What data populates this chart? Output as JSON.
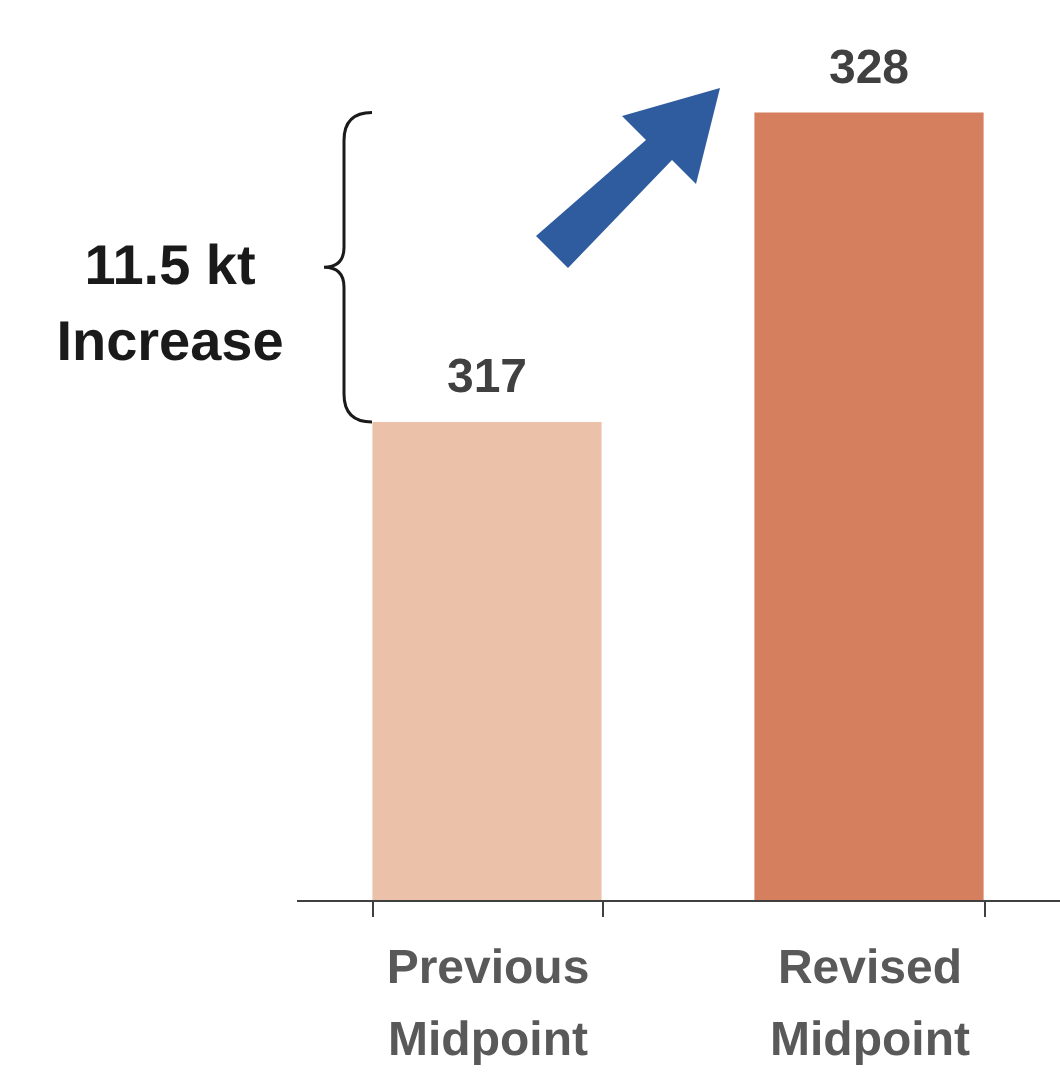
{
  "chart_data": {
    "type": "bar",
    "categories": [
      "Previous Midpoint",
      "Revised Midpoint"
    ],
    "values": [
      317,
      328
    ],
    "colors": [
      "#ebc1aa",
      "#d67f5e"
    ],
    "ylim": [
      300,
      332
    ],
    "data_labels": true,
    "tick_labels": "x",
    "annotations": [
      "11.5 kt\nIncrease"
    ]
  }
}
